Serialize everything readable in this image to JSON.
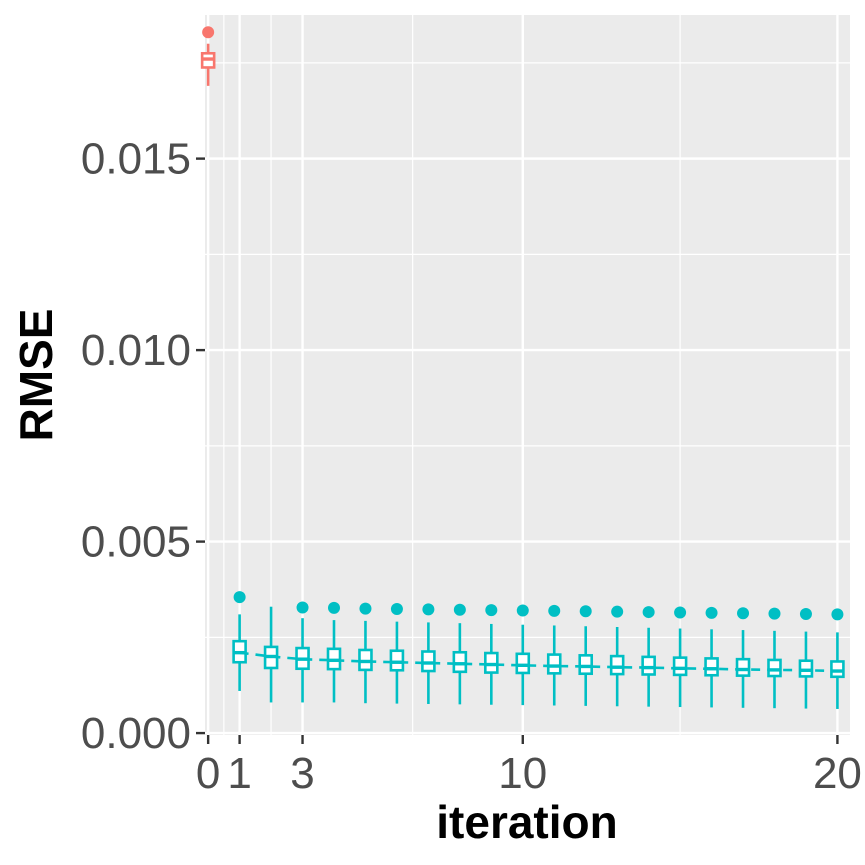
{
  "chart_data": {
    "type": "boxplot",
    "xlabel": "iteration",
    "ylabel": "RMSE",
    "xlim": [
      -0.1,
      20.4
    ],
    "ylim": [
      -5e-05,
      0.01875
    ],
    "x_ticks": [
      0,
      1,
      3,
      10,
      20
    ],
    "x_tick_labels": [
      "0",
      "1",
      "3",
      "10",
      "20"
    ],
    "y_ticks": [
      0.0,
      0.005,
      0.01,
      0.015
    ],
    "y_tick_labels": [
      "0.000",
      "0.005",
      "0.010",
      "0.015"
    ],
    "grid": true,
    "legend": "none",
    "series": [
      {
        "color": "#F8766D",
        "boxes": [
          {
            "x": 0,
            "whisker_low": 0.0169,
            "q1": 0.01738,
            "median": 0.0176,
            "q3": 0.01775,
            "whisker_high": 0.018,
            "outliers": [
              0.0183
            ]
          }
        ]
      },
      {
        "color": "#00BFC4",
        "boxes": [
          {
            "x": 1,
            "whisker_low": 0.0011,
            "q1": 0.00185,
            "median": 0.0021,
            "q3": 0.0024,
            "whisker_high": 0.0031,
            "outliers": [
              0.00355
            ]
          },
          {
            "x": 2,
            "whisker_low": 0.0008,
            "q1": 0.0017,
            "median": 0.002,
            "q3": 0.00225,
            "whisker_high": 0.0033,
            "outliers": []
          },
          {
            "x": 3,
            "whisker_low": 0.0008,
            "q1": 0.00168,
            "median": 0.00193,
            "q3": 0.00222,
            "whisker_high": 0.003,
            "outliers": [
              0.00328
            ]
          },
          {
            "x": 4,
            "whisker_low": 0.0008,
            "q1": 0.00167,
            "median": 0.0019,
            "q3": 0.0022,
            "whisker_high": 0.00295,
            "outliers": [
              0.00327
            ]
          },
          {
            "x": 5,
            "whisker_low": 0.00078,
            "q1": 0.00165,
            "median": 0.00187,
            "q3": 0.00217,
            "whisker_high": 0.00293,
            "outliers": [
              0.00325
            ]
          },
          {
            "x": 6,
            "whisker_low": 0.00077,
            "q1": 0.00164,
            "median": 0.00185,
            "q3": 0.00215,
            "whisker_high": 0.00291,
            "outliers": [
              0.00324
            ]
          },
          {
            "x": 7,
            "whisker_low": 0.00076,
            "q1": 0.00162,
            "median": 0.00183,
            "q3": 0.00213,
            "whisker_high": 0.00289,
            "outliers": [
              0.00323
            ]
          },
          {
            "x": 8,
            "whisker_low": 0.00075,
            "q1": 0.0016,
            "median": 0.00181,
            "q3": 0.00211,
            "whisker_high": 0.00287,
            "outliers": [
              0.00322
            ]
          },
          {
            "x": 9,
            "whisker_low": 0.00074,
            "q1": 0.00158,
            "median": 0.00179,
            "q3": 0.00209,
            "whisker_high": 0.00285,
            "outliers": [
              0.00321
            ]
          },
          {
            "x": 10,
            "whisker_low": 0.00073,
            "q1": 0.00157,
            "median": 0.00177,
            "q3": 0.00207,
            "whisker_high": 0.00283,
            "outliers": [
              0.0032
            ]
          },
          {
            "x": 11,
            "whisker_low": 0.00072,
            "q1": 0.00156,
            "median": 0.00175,
            "q3": 0.00205,
            "whisker_high": 0.00281,
            "outliers": [
              0.00319
            ]
          },
          {
            "x": 12,
            "whisker_low": 0.00071,
            "q1": 0.00155,
            "median": 0.00174,
            "q3": 0.00203,
            "whisker_high": 0.00279,
            "outliers": [
              0.00318
            ]
          },
          {
            "x": 13,
            "whisker_low": 0.0007,
            "q1": 0.00154,
            "median": 0.00172,
            "q3": 0.00201,
            "whisker_high": 0.00277,
            "outliers": [
              0.00317
            ]
          },
          {
            "x": 14,
            "whisker_low": 0.00069,
            "q1": 0.00153,
            "median": 0.00171,
            "q3": 0.00199,
            "whisker_high": 0.00275,
            "outliers": [
              0.00316
            ]
          },
          {
            "x": 15,
            "whisker_low": 0.00068,
            "q1": 0.00152,
            "median": 0.00169,
            "q3": 0.00197,
            "whisker_high": 0.00273,
            "outliers": [
              0.00315
            ]
          },
          {
            "x": 16,
            "whisker_low": 0.00067,
            "q1": 0.00151,
            "median": 0.00168,
            "q3": 0.00195,
            "whisker_high": 0.00271,
            "outliers": [
              0.00314
            ]
          },
          {
            "x": 17,
            "whisker_low": 0.00066,
            "q1": 0.0015,
            "median": 0.00166,
            "q3": 0.00193,
            "whisker_high": 0.00269,
            "outliers": [
              0.00313
            ]
          },
          {
            "x": 18,
            "whisker_low": 0.00065,
            "q1": 0.00149,
            "median": 0.00165,
            "q3": 0.00191,
            "whisker_high": 0.00267,
            "outliers": [
              0.00312
            ]
          },
          {
            "x": 19,
            "whisker_low": 0.00064,
            "q1": 0.00148,
            "median": 0.00164,
            "q3": 0.00189,
            "whisker_high": 0.00265,
            "outliers": [
              0.00311
            ]
          },
          {
            "x": 20,
            "whisker_low": 0.00063,
            "q1": 0.00147,
            "median": 0.00162,
            "q3": 0.00187,
            "whisker_high": 0.00263,
            "outliers": [
              0.0031
            ]
          }
        ],
        "median_line": "dashed"
      }
    ]
  }
}
